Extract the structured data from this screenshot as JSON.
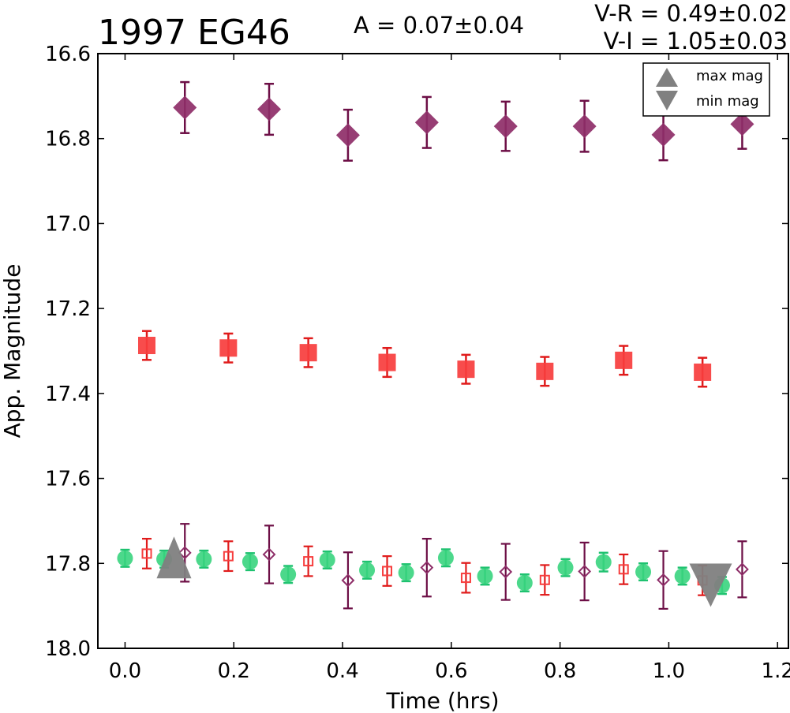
{
  "chart_data": {
    "type": "scatter",
    "title": "1997 EG46",
    "amplitude_label": "A  = 0.07±0.04",
    "color_labels": [
      "V-R = 0.49±0.02",
      "V-I  = 1.05±0.03"
    ],
    "xlabel": "Time (hrs)",
    "ylabel": "App. Magnitude",
    "xlim": [
      -0.05,
      1.22
    ],
    "ylim": [
      18.0,
      16.6
    ],
    "y_inverted": true,
    "grid": false,
    "x_ticks": [
      "0.0",
      "0.2",
      "0.4",
      "0.6",
      "0.8",
      "1.0",
      "1.2"
    ],
    "y_ticks": [
      "16.6",
      "16.8",
      "17.0",
      "17.2",
      "17.4",
      "17.6",
      "17.8",
      "18.0"
    ],
    "legend": {
      "placement": "top-right",
      "entries": [
        {
          "label": "max mag",
          "marker": "triangle-up",
          "color": "#808080"
        },
        {
          "label": "min mag",
          "marker": "triangle-down",
          "color": "#808080"
        }
      ]
    },
    "series": [
      {
        "marker": "diamond",
        "filled": true,
        "color": "#8e2e68",
        "errcolor": "#6d0f46",
        "points": [
          [
            0.11,
            16.727,
            0.06
          ],
          [
            0.265,
            16.731,
            0.06
          ],
          [
            0.41,
            16.792,
            0.06
          ],
          [
            0.555,
            16.762,
            0.06
          ],
          [
            0.7,
            16.771,
            0.058
          ],
          [
            0.845,
            16.771,
            0.06
          ],
          [
            0.99,
            16.791,
            0.06
          ],
          [
            1.135,
            16.766,
            0.058
          ]
        ]
      },
      {
        "marker": "square",
        "filled": true,
        "color": "#f73d3d",
        "errcolor": "#e01b1b",
        "points": [
          [
            0.04,
            17.287,
            0.034
          ],
          [
            0.19,
            17.293,
            0.034
          ],
          [
            0.337,
            17.304,
            0.034
          ],
          [
            0.482,
            17.327,
            0.034
          ],
          [
            0.627,
            17.343,
            0.034
          ],
          [
            0.772,
            17.348,
            0.034
          ],
          [
            0.917,
            17.322,
            0.034
          ],
          [
            1.062,
            17.35,
            0.034
          ]
        ]
      },
      {
        "marker": "circle",
        "filled": true,
        "color": "#38d47e",
        "errcolor": "#1fc270",
        "points": [
          [
            0.0,
            17.788,
            0.02
          ],
          [
            0.072,
            17.79,
            0.02
          ],
          [
            0.145,
            17.79,
            0.02
          ],
          [
            0.23,
            17.796,
            0.02
          ],
          [
            0.3,
            17.826,
            0.02
          ],
          [
            0.372,
            17.792,
            0.02
          ],
          [
            0.445,
            17.816,
            0.02
          ],
          [
            0.517,
            17.822,
            0.02
          ],
          [
            0.59,
            17.787,
            0.02
          ],
          [
            0.662,
            17.83,
            0.02
          ],
          [
            0.735,
            17.846,
            0.02
          ],
          [
            0.81,
            17.81,
            0.02
          ],
          [
            0.88,
            17.797,
            0.022
          ],
          [
            0.953,
            17.82,
            0.02
          ],
          [
            1.025,
            17.83,
            0.02
          ],
          [
            1.098,
            17.852,
            0.02
          ]
        ]
      },
      {
        "marker": "square",
        "filled": false,
        "color": "#f73d3d",
        "errcolor": "#e01b1b",
        "points": [
          [
            0.04,
            17.777,
            0.035
          ],
          [
            0.19,
            17.783,
            0.035
          ],
          [
            0.337,
            17.795,
            0.035
          ],
          [
            0.482,
            17.818,
            0.035
          ],
          [
            0.627,
            17.834,
            0.035
          ],
          [
            0.772,
            17.839,
            0.035
          ],
          [
            0.917,
            17.814,
            0.035
          ],
          [
            1.062,
            17.84,
            0.035
          ]
        ]
      },
      {
        "marker": "diamond",
        "filled": false,
        "color": "#8e2e68",
        "errcolor": "#6d0f46",
        "points": [
          [
            0.11,
            17.775,
            0.068
          ],
          [
            0.265,
            17.779,
            0.068
          ],
          [
            0.41,
            17.84,
            0.066
          ],
          [
            0.555,
            17.81,
            0.068
          ],
          [
            0.7,
            17.82,
            0.066
          ],
          [
            0.845,
            17.819,
            0.068
          ],
          [
            0.99,
            17.839,
            0.068
          ],
          [
            1.135,
            17.814,
            0.066
          ]
        ]
      }
    ],
    "extrema": {
      "color": "#808080",
      "max": {
        "x": 0.09,
        "y": 17.8
      },
      "min": {
        "x": 1.077,
        "y": 17.83
      }
    }
  }
}
